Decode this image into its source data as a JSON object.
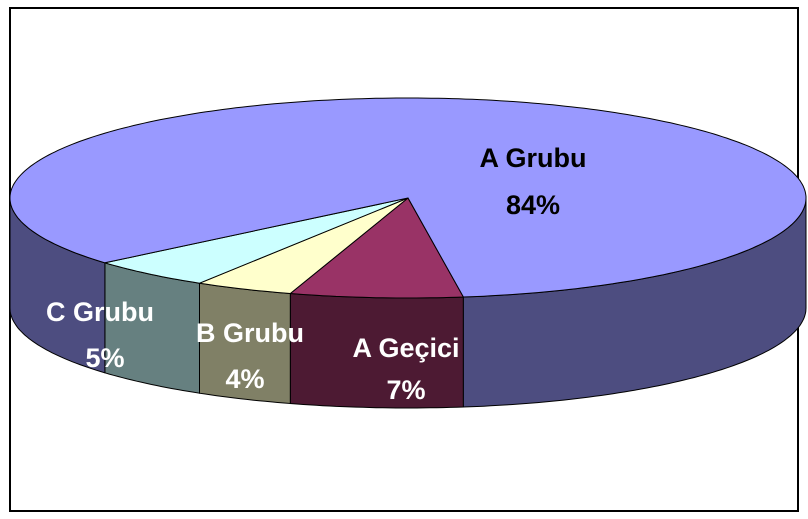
{
  "chart_data": {
    "type": "pie",
    "categories": [
      "A Geçici",
      "B Grubu",
      "C Grubu",
      "A Grubu"
    ],
    "values": [
      7,
      4,
      5,
      84
    ],
    "value_labels": [
      "7%",
      "4%",
      "5%",
      "84%"
    ],
    "colors": [
      "#993366",
      "#ffffcc",
      "#ccffff",
      "#9999ff"
    ],
    "side_colors": [
      "#4d1a33",
      "#808066",
      "#668080",
      "#4d4d80"
    ]
  }
}
